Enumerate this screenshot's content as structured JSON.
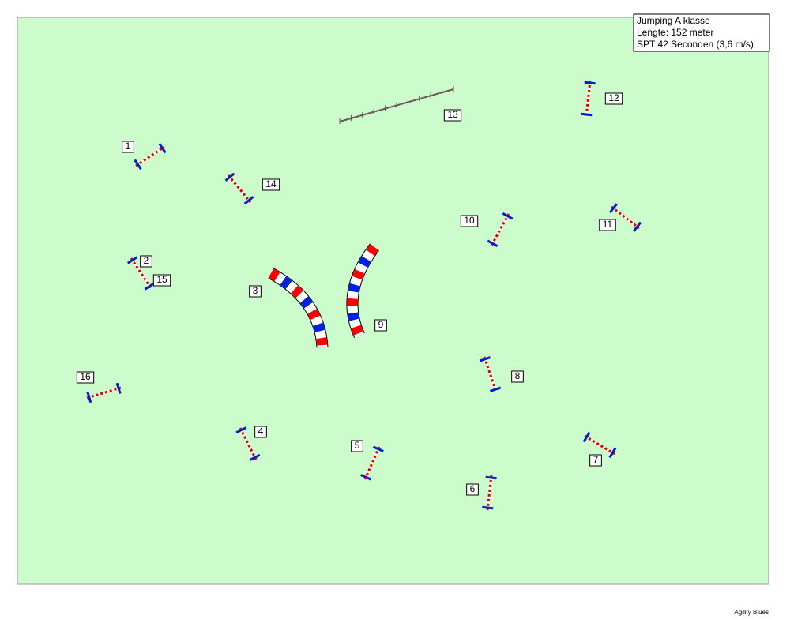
{
  "info": {
    "lines": [
      "Jumping A  klasse",
      "Lengte: 152  meter",
      "SPT 42 Seconden (3,6 m/s)"
    ]
  },
  "nodes": [
    {
      "label": "1"
    },
    {
      "label": "2"
    },
    {
      "label": "3"
    },
    {
      "label": "4"
    },
    {
      "label": "5"
    },
    {
      "label": "6"
    },
    {
      "label": "7"
    },
    {
      "label": "8"
    },
    {
      "label": "9"
    },
    {
      "label": "10"
    },
    {
      "label": "11"
    },
    {
      "label": "12"
    },
    {
      "label": "13"
    },
    {
      "label": "14"
    },
    {
      "label": "15"
    },
    {
      "label": "16"
    }
  ],
  "footer": "Agility Blues"
}
